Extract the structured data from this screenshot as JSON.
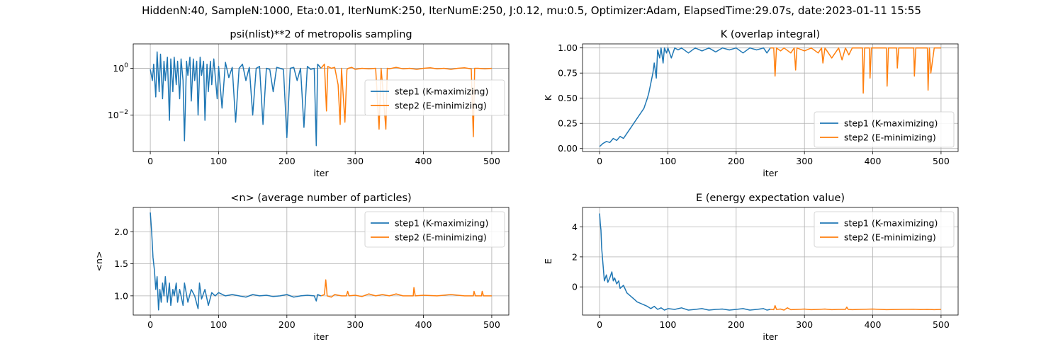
{
  "suptitle": "HiddenN:40, SampleN:1000, Eta:0.01, IterNumK:250, IterNumE:250, J:0.12, mu:0.5, Optimizer:Adam, ElapsedTime:29.07s, date:2023-01-11  15:55",
  "colors": {
    "step1": "#1f77b4",
    "step2": "#ff7f0e",
    "grid": "#b0b0b0",
    "axes": "#000000"
  },
  "chart_data": [
    {
      "id": "psi",
      "type": "line",
      "title": "psi(nlist)**2 of metropolis sampling",
      "xlabel": "iter",
      "ylabel": "",
      "yscale": "log",
      "xlim": [
        -25,
        525
      ],
      "ylim": [
        0.00028,
        11
      ],
      "xticks": [
        0,
        100,
        200,
        300,
        400,
        500
      ],
      "xtick_labels": [
        "0",
        "100",
        "200",
        "300",
        "400",
        "500"
      ],
      "yticks": [
        0.01,
        1
      ],
      "ytick_labels": [
        "10^-2",
        "10^0"
      ],
      "grid": true,
      "legend_position": "center-right",
      "legend": [
        "step1 (K-maximizing)",
        "step2 (E-minimizing)"
      ],
      "series": [
        {
          "name": "step1 (K-maximizing)",
          "color": "#1f77b4",
          "x": [
            0,
            3,
            5,
            8,
            10,
            13,
            15,
            18,
            20,
            22,
            25,
            28,
            30,
            33,
            35,
            38,
            40,
            43,
            45,
            48,
            50,
            53,
            55,
            58,
            60,
            63,
            65,
            68,
            70,
            73,
            75,
            78,
            80,
            83,
            85,
            88,
            90,
            93,
            95,
            98,
            100,
            105,
            110,
            115,
            120,
            125,
            130,
            135,
            140,
            145,
            150,
            155,
            160,
            165,
            170,
            175,
            180,
            185,
            190,
            195,
            200,
            205,
            210,
            215,
            220,
            225,
            230,
            235,
            240,
            243,
            245,
            250
          ],
          "y": [
            0.9,
            0.3,
            1.5,
            0.06,
            5,
            0.1,
            4,
            0.05,
            2,
            0.3,
            3,
            0.006,
            2.5,
            0.1,
            3,
            0.2,
            2,
            0.05,
            2.5,
            0.3,
            0.0008,
            2,
            0.5,
            3,
            0.04,
            2.5,
            0.3,
            2,
            0.01,
            3,
            0.5,
            2,
            0.006,
            1.5,
            0.1,
            2,
            0.2,
            2.5,
            0.5,
            0.05,
            1.2,
            0.02,
            1.8,
            0.4,
            1.1,
            0.005,
            1,
            1.5,
            0.3,
            1.1,
            0.01,
            1,
            1.2,
            0.004,
            1,
            0.9,
            0.1,
            1.1,
            1,
            0.9,
            0.0011,
            1,
            1.1,
            0.3,
            1,
            0.003,
            1.2,
            0.9,
            1,
            0.0005,
            1.5,
            1
          ]
        },
        {
          "name": "step2 (E-minimizing)",
          "color": "#ff7f0e",
          "x": [
            250,
            255,
            258,
            260,
            265,
            270,
            275,
            278,
            280,
            285,
            288,
            290,
            295,
            300,
            310,
            320,
            330,
            335,
            338,
            340,
            345,
            347,
            350,
            360,
            370,
            380,
            390,
            400,
            410,
            420,
            430,
            440,
            450,
            460,
            470,
            473,
            475,
            480,
            490,
            500
          ],
          "y": [
            1,
            1.5,
            0.015,
            1.2,
            1,
            1.1,
            0.2,
            0.004,
            1,
            0.005,
            0.9,
            1,
            1.1,
            0.9,
            1,
            0.95,
            1,
            0.0025,
            1,
            0.2,
            0.0025,
            1,
            0.95,
            1.1,
            0.95,
            1,
            0.9,
            1,
            1.05,
            0.95,
            1,
            0.9,
            1,
            1.05,
            0.95,
            0.0012,
            1,
            1,
            0.95,
            1
          ]
        }
      ]
    },
    {
      "id": "K",
      "type": "line",
      "title": "K (overlap integral)",
      "xlabel": "iter",
      "ylabel": "K",
      "yscale": "linear",
      "xlim": [
        -25,
        525
      ],
      "ylim": [
        -0.03,
        1.04
      ],
      "xticks": [
        0,
        100,
        200,
        300,
        400,
        500
      ],
      "xtick_labels": [
        "0",
        "100",
        "200",
        "300",
        "400",
        "500"
      ],
      "yticks": [
        0,
        0.25,
        0.5,
        0.75,
        1
      ],
      "ytick_labels": [
        "0.00",
        "0.25",
        "0.50",
        "0.75",
        "1.00"
      ],
      "grid": true,
      "legend_position": "lower-right",
      "legend": [
        "step1 (K-maximizing)",
        "step2 (E-minimizing)"
      ],
      "series": [
        {
          "name": "step1 (K-maximizing)",
          "color": "#1f77b4",
          "x": [
            0,
            5,
            10,
            15,
            20,
            25,
            30,
            35,
            40,
            45,
            50,
            55,
            60,
            65,
            70,
            72,
            75,
            78,
            80,
            83,
            85,
            88,
            90,
            93,
            95,
            98,
            100,
            105,
            110,
            115,
            120,
            130,
            140,
            150,
            160,
            170,
            180,
            190,
            200,
            210,
            220,
            230,
            240,
            245,
            250
          ],
          "y": [
            0.02,
            0.05,
            0.07,
            0.06,
            0.1,
            0.08,
            0.12,
            0.1,
            0.15,
            0.2,
            0.25,
            0.3,
            0.35,
            0.4,
            0.5,
            0.55,
            0.65,
            0.75,
            0.85,
            0.7,
            0.98,
            0.9,
            1,
            0.85,
            1,
            0.95,
            1,
            0.9,
            1,
            0.98,
            1,
            0.95,
            1,
            0.97,
            1,
            0.96,
            1,
            0.98,
            1,
            0.95,
            1,
            0.98,
            1,
            0.95,
            1
          ]
        },
        {
          "name": "step2 (E-minimizing)",
          "color": "#ff7f0e",
          "x": [
            250,
            255,
            257,
            259,
            265,
            270,
            280,
            285,
            287,
            289,
            300,
            310,
            320,
            325,
            327,
            330,
            340,
            350,
            355,
            360,
            365,
            370,
            380,
            385,
            386,
            388,
            395,
            396,
            398,
            410,
            420,
            421,
            423,
            435,
            436,
            438,
            460,
            461,
            463,
            470,
            480,
            481,
            483,
            485,
            490,
            500
          ],
          "y": [
            1,
            1,
            0.72,
            1,
            0.97,
            1,
            0.95,
            1,
            0.78,
            1,
            0.97,
            1,
            0.95,
            1,
            0.85,
            1,
            0.9,
            1,
            0.88,
            1,
            0.93,
            1,
            1,
            1,
            0.55,
            1,
            1,
            0.7,
            1,
            1,
            1,
            0.62,
            1,
            1,
            0.8,
            1,
            1,
            0.72,
            1,
            1,
            1,
            0.58,
            1,
            0.75,
            1,
            1
          ]
        }
      ]
    },
    {
      "id": "n",
      "type": "line",
      "title": "<n> (average number of particles)",
      "xlabel": "iter",
      "ylabel": "<n>",
      "yscale": "linear",
      "xlim": [
        -25,
        525
      ],
      "ylim": [
        0.7,
        2.38
      ],
      "xticks": [
        0,
        100,
        200,
        300,
        400,
        500
      ],
      "xtick_labels": [
        "0",
        "100",
        "200",
        "300",
        "400",
        "500"
      ],
      "yticks": [
        1,
        1.5,
        2
      ],
      "ytick_labels": [
        "1.0",
        "1.5",
        "2.0"
      ],
      "grid": true,
      "legend_position": "upper-right",
      "legend": [
        "step1 (K-maximizing)",
        "step2 (E-minimizing)"
      ],
      "series": [
        {
          "name": "step1 (K-maximizing)",
          "color": "#1f77b4",
          "x": [
            0,
            2,
            4,
            6,
            8,
            10,
            12,
            14,
            16,
            18,
            20,
            22,
            25,
            28,
            30,
            33,
            35,
            38,
            40,
            43,
            45,
            48,
            50,
            55,
            60,
            65,
            70,
            72,
            75,
            80,
            85,
            90,
            95,
            100,
            110,
            120,
            130,
            140,
            150,
            160,
            170,
            180,
            190,
            200,
            210,
            220,
            230,
            240,
            243,
            245,
            250
          ],
          "y": [
            2.3,
            2.0,
            1.6,
            1.4,
            1.1,
            1.3,
            0.78,
            1.1,
            0.9,
            1.2,
            1.0,
            1.3,
            0.9,
            1.2,
            0.85,
            1.1,
            1.0,
            1.2,
            0.9,
            1.1,
            1.0,
            0.85,
            1.2,
            0.9,
            1.1,
            1.0,
            0.8,
            1.2,
            0.95,
            1.1,
            0.85,
            1.05,
            1.0,
            1.05,
            1.0,
            1.02,
            1.0,
            0.98,
            1.02,
            1.0,
            1.01,
            0.99,
            1.0,
            1.02,
            0.98,
            1.0,
            1.01,
            1.0,
            0.92,
            1.02,
            1.0
          ]
        },
        {
          "name": "step2 (E-minimizing)",
          "color": "#ff7f0e",
          "x": [
            250,
            255,
            257,
            259,
            265,
            270,
            280,
            287,
            289,
            291,
            300,
            310,
            320,
            330,
            340,
            350,
            360,
            370,
            380,
            385,
            386,
            388,
            400,
            420,
            440,
            460,
            473,
            474,
            476,
            480,
            485,
            486,
            488,
            500
          ],
          "y": [
            1.0,
            1.02,
            1.25,
            1.0,
            0.98,
            1.02,
            1.0,
            1.0,
            1.07,
            1.0,
            1.01,
            0.99,
            1.03,
            1.0,
            1.02,
            1.0,
            1.03,
            1.0,
            1.0,
            1.0,
            1.13,
            1.0,
            1.01,
            1.0,
            1.02,
            1.0,
            1.0,
            1.07,
            1.0,
            1.0,
            1.0,
            1.07,
            1.0,
            1.0
          ]
        }
      ]
    },
    {
      "id": "E",
      "type": "line",
      "title": "E (energy expectation value)",
      "xlabel": "iter",
      "ylabel": "E",
      "yscale": "linear",
      "xlim": [
        -25,
        525
      ],
      "ylim": [
        -1.88,
        5.3
      ],
      "xticks": [
        0,
        100,
        200,
        300,
        400,
        500
      ],
      "xtick_labels": [
        "0",
        "100",
        "200",
        "300",
        "400",
        "500"
      ],
      "yticks": [
        0,
        2,
        4
      ],
      "ytick_labels": [
        "0",
        "2",
        "4"
      ],
      "grid": true,
      "legend_position": "upper-right",
      "legend": [
        "step1 (K-maximizing)",
        "step2 (E-minimizing)"
      ],
      "series": [
        {
          "name": "step1 (K-maximizing)",
          "color": "#1f77b4",
          "x": [
            0,
            1,
            2,
            3,
            5,
            7,
            10,
            12,
            15,
            18,
            20,
            22,
            25,
            28,
            30,
            35,
            40,
            45,
            50,
            55,
            60,
            65,
            70,
            75,
            80,
            85,
            90,
            95,
            100,
            110,
            120,
            130,
            140,
            150,
            160,
            170,
            180,
            190,
            200,
            210,
            220,
            230,
            240,
            245,
            250
          ],
          "y": [
            4.9,
            4.2,
            3.8,
            2.6,
            1.5,
            0.4,
            0.8,
            0.3,
            0.6,
            1.0,
            0.4,
            0.6,
            0.2,
            0.4,
            -0.1,
            0.1,
            -0.4,
            -0.6,
            -0.8,
            -1.0,
            -1.1,
            -1.2,
            -1.3,
            -1.45,
            -1.3,
            -1.5,
            -1.4,
            -1.55,
            -1.45,
            -1.5,
            -1.4,
            -1.55,
            -1.5,
            -1.45,
            -1.55,
            -1.5,
            -1.48,
            -1.55,
            -1.5,
            -1.45,
            -1.55,
            -1.5,
            -1.45,
            -1.55,
            -1.5
          ]
        },
        {
          "name": "step2 (E-minimizing)",
          "color": "#ff7f0e",
          "x": [
            250,
            255,
            257,
            259,
            265,
            270,
            275,
            280,
            290,
            300,
            310,
            320,
            330,
            340,
            350,
            360,
            362,
            364,
            370,
            380,
            400,
            420,
            440,
            460,
            470,
            480,
            490,
            500
          ],
          "y": [
            -1.5,
            -1.52,
            -1.25,
            -1.5,
            -1.48,
            -1.55,
            -1.4,
            -1.52,
            -1.5,
            -1.48,
            -1.52,
            -1.5,
            -1.48,
            -1.52,
            -1.5,
            -1.5,
            -1.35,
            -1.5,
            -1.52,
            -1.5,
            -1.48,
            -1.52,
            -1.5,
            -1.49,
            -1.51,
            -1.5,
            -1.52,
            -1.5
          ]
        }
      ]
    }
  ]
}
